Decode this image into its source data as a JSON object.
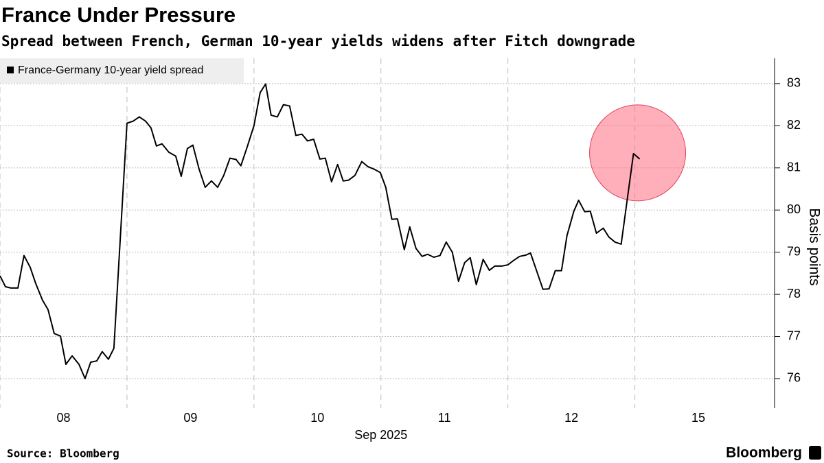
{
  "chart_data": {
    "type": "line",
    "title": "France Under Pressure",
    "subtitle": "Spread between French, German 10-year yields widens after Fitch downgrade",
    "xlabel": "Sep 2025",
    "ylabel": "Basis points",
    "source": "Source: Bloomberg",
    "brand": "Bloomberg",
    "x": [
      0,
      0.043,
      0.086,
      0.141,
      0.189,
      0.238,
      0.281,
      0.335,
      0.378,
      0.427,
      0.476,
      0.519,
      0.568,
      0.622,
      0.67,
      0.714,
      0.762,
      0.805,
      0.854,
      0.897,
      1.0,
      1.049,
      1.097,
      1.146,
      1.189,
      1.232,
      1.276,
      1.33,
      1.384,
      1.427,
      1.476,
      1.519,
      1.568,
      1.616,
      1.665,
      1.714,
      1.762,
      1.811,
      1.859,
      1.897,
      1.946,
      2.0,
      2.049,
      2.092,
      2.135,
      2.184,
      2.232,
      2.281,
      2.33,
      2.378,
      2.422,
      2.47,
      2.519,
      2.562,
      2.611,
      2.659,
      2.703,
      2.746,
      2.795,
      2.849,
      2.897,
      2.946,
      2.995,
      3.038,
      3.086,
      3.13,
      3.184,
      3.227,
      3.276,
      3.324,
      3.368,
      3.416,
      3.465,
      3.514,
      3.562,
      3.611,
      3.659,
      3.703,
      3.751,
      3.805,
      3.854,
      3.897,
      3.951,
      4.0,
      4.043,
      4.092,
      4.141,
      4.178,
      4.276,
      4.324,
      4.373,
      4.422,
      4.465,
      4.519,
      4.557,
      4.605,
      4.649,
      4.697,
      4.751,
      4.795,
      4.843,
      4.892,
      4.989,
      5.038
    ],
    "series": [
      {
        "name": "France-Germany 10-year yield spread",
        "color": "#000000",
        "values": [
          78.44,
          78.18,
          78.15,
          78.15,
          78.92,
          78.64,
          78.26,
          77.86,
          77.64,
          77.07,
          77.01,
          76.34,
          76.54,
          76.34,
          76.0,
          76.39,
          76.42,
          76.64,
          76.46,
          76.72,
          82.06,
          82.11,
          82.21,
          82.11,
          81.95,
          81.52,
          81.57,
          81.37,
          81.28,
          80.8,
          81.46,
          81.54,
          80.97,
          80.54,
          80.69,
          80.54,
          80.82,
          81.23,
          81.2,
          81.05,
          81.49,
          82.0,
          82.79,
          82.99,
          82.25,
          82.21,
          82.5,
          82.47,
          81.77,
          81.8,
          81.64,
          81.68,
          81.21,
          81.23,
          80.67,
          81.08,
          80.69,
          80.71,
          80.82,
          81.15,
          81.03,
          80.97,
          80.89,
          80.54,
          79.78,
          79.79,
          79.06,
          79.6,
          79.09,
          78.9,
          78.95,
          78.88,
          78.92,
          79.24,
          79.0,
          78.31,
          78.75,
          78.87,
          78.23,
          78.83,
          78.57,
          78.67,
          78.67,
          78.7,
          78.8,
          78.9,
          78.93,
          78.98,
          78.12,
          78.13,
          78.56,
          78.56,
          79.39,
          79.97,
          80.23,
          79.96,
          79.97,
          79.45,
          79.57,
          79.36,
          79.24,
          79.19,
          81.34,
          81.21
        ]
      }
    ],
    "xlim": [
      0,
      6.1
    ],
    "xticks": [
      {
        "value": 0,
        "label": "08"
      },
      {
        "value": 1,
        "label": "09"
      },
      {
        "value": 2,
        "label": "10"
      },
      {
        "value": 3,
        "label": "11"
      },
      {
        "value": 4,
        "label": "12"
      },
      {
        "value": 5,
        "label": "15"
      }
    ],
    "ylim": [
      75.3,
      83.6
    ],
    "yticks": [
      76,
      77,
      78,
      79,
      80,
      81,
      82,
      83
    ],
    "grid": true,
    "legend": "top-left"
  }
}
